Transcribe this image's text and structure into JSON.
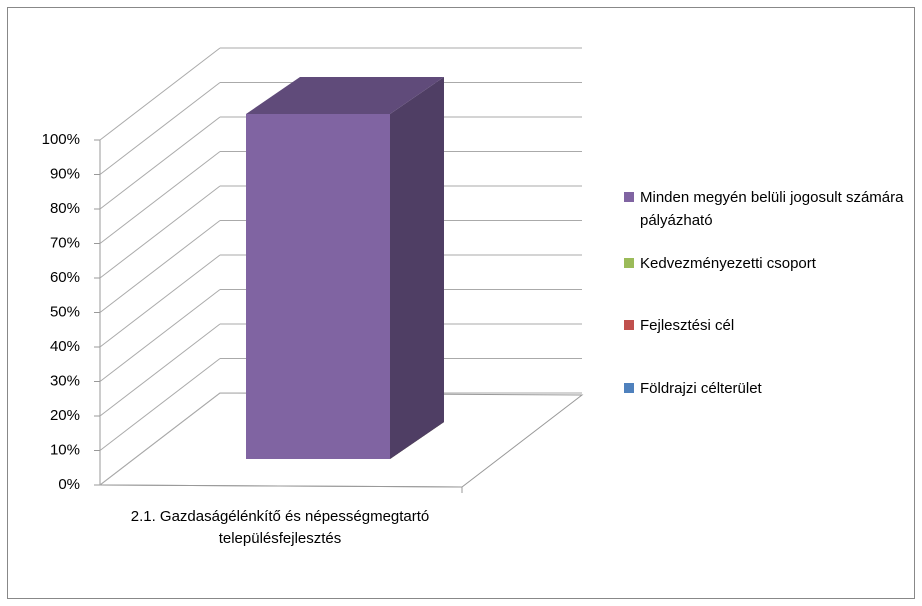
{
  "chart_data": {
    "type": "bar3d_stacked100",
    "categories": [
      "2.1. Gazdaságélénkítő és népességmegtartó településfejlesztés"
    ],
    "series": [
      {
        "name": "Földrajzi célterület",
        "color": "#4f81bd",
        "values": [
          0
        ]
      },
      {
        "name": "Fejlesztési cél",
        "color": "#c0504d",
        "values": [
          0
        ]
      },
      {
        "name": "Kedvezményezetti csoport",
        "color": "#9bbb59",
        "values": [
          0
        ]
      },
      {
        "name": "Minden megyén belüli jogosult számára pályázható",
        "color": "#8064a2",
        "values": [
          100
        ]
      }
    ],
    "ylim": [
      0,
      100
    ],
    "yticks": [
      {
        "value": 0,
        "label": "0%"
      },
      {
        "value": 10,
        "label": "10%"
      },
      {
        "value": 20,
        "label": "20%"
      },
      {
        "value": 30,
        "label": "30%"
      },
      {
        "value": 40,
        "label": "40%"
      },
      {
        "value": 50,
        "label": "50%"
      },
      {
        "value": 60,
        "label": "60%"
      },
      {
        "value": 70,
        "label": "70%"
      },
      {
        "value": 80,
        "label": "80%"
      },
      {
        "value": 90,
        "label": "90%"
      },
      {
        "value": 100,
        "label": "100%"
      }
    ],
    "grid": true,
    "legend": "right"
  }
}
